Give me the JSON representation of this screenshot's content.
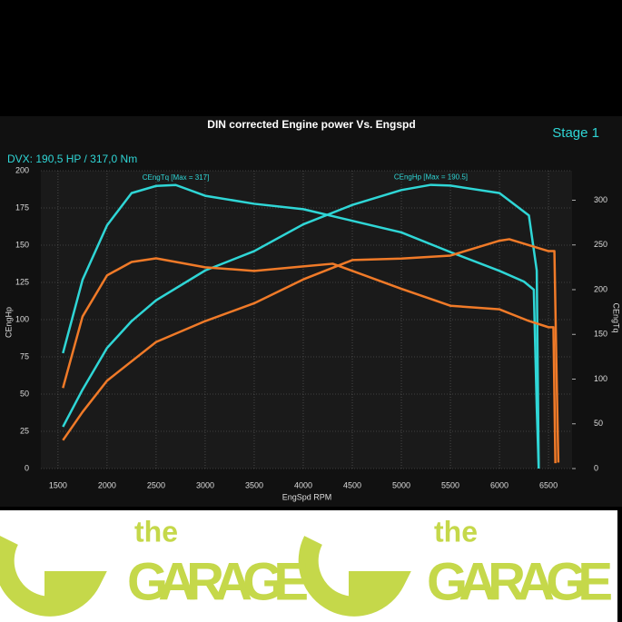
{
  "chart_data": {
    "type": "line",
    "title": "DIN corrected Engine power Vs. Engspd",
    "subtitle": "DVX:  190,5 HP / 317,0 Nm",
    "badge": "Stage 1",
    "x_label": "EngSpd RPM",
    "y_label": "CEngHp",
    "y2_label": "CEngTq",
    "xlim": [
      1325,
      6740
    ],
    "ylim": [
      0,
      200
    ],
    "y2lim": [
      0,
      333
    ],
    "xticks": [
      1500,
      2000,
      2500,
      3000,
      3500,
      4000,
      4500,
      5000,
      5500,
      6000,
      6500
    ],
    "yticks": [
      0,
      25,
      50,
      75,
      100,
      125,
      150,
      175,
      200
    ],
    "y2ticks": [
      0,
      50,
      100,
      150,
      200,
      250,
      300
    ],
    "grid": true,
    "annotations": [
      {
        "text": "CEngTq [Max = 317]",
        "x": 2700,
        "y": 317,
        "axis": "y2"
      },
      {
        "text": "CEngHp [Max = 190.5]",
        "x": 5300,
        "y": 190.5,
        "axis": "y"
      }
    ],
    "series": [
      {
        "color": "#2fd6d6",
        "axis": "y2",
        "x": [
          1550,
          1750,
          2000,
          2250,
          2500,
          2700,
          3000,
          3500,
          4000,
          4500,
          5000,
          5500,
          6000,
          6250,
          6350,
          6380,
          6400
        ],
        "values": [
          129,
          211,
          272,
          308,
          316,
          317,
          305,
          296,
          290,
          277,
          264,
          242,
          221,
          209,
          200,
          68,
          0
        ]
      },
      {
        "color": "#2fd6d6",
        "axis": "y",
        "x": [
          1550,
          1750,
          2000,
          2250,
          2500,
          3000,
          3500,
          4000,
          4500,
          5000,
          5300,
          5500,
          6000,
          6300,
          6380,
          6400
        ],
        "values": [
          28,
          53,
          81,
          99,
          113,
          133,
          146,
          164,
          177,
          187,
          190.5,
          190,
          185,
          170,
          133,
          0
        ]
      },
      {
        "color": "#f07a28",
        "axis": "y2",
        "x": [
          1550,
          1750,
          2000,
          2250,
          2500,
          3000,
          3500,
          4000,
          4300,
          4500,
          5000,
          5500,
          6000,
          6300,
          6500,
          6550,
          6570
        ],
        "values": [
          90,
          170,
          216,
          231,
          235,
          225,
          221,
          226,
          229,
          221,
          201,
          182,
          178,
          165,
          158,
          158,
          6
        ]
      },
      {
        "color": "#f07a28",
        "axis": "y",
        "x": [
          1550,
          1750,
          2000,
          2500,
          3000,
          3500,
          4000,
          4500,
          5000,
          5500,
          6000,
          6100,
          6500,
          6560,
          6580,
          6600
        ],
        "values": [
          19,
          38,
          59,
          85,
          99,
          111,
          127,
          140,
          141,
          143,
          153,
          154,
          146,
          146,
          71,
          4
        ]
      }
    ]
  },
  "logo": {
    "word1": "the",
    "word2": "GARAGE"
  }
}
